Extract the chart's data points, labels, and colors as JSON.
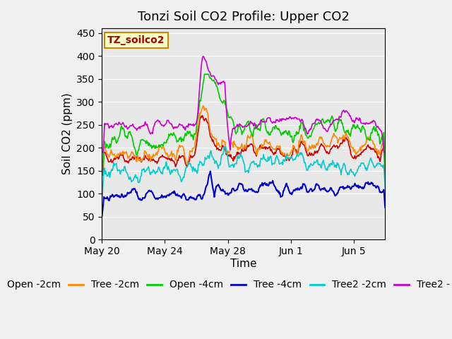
{
  "title": "Tonzi Soil CO2 Profile: Upper CO2",
  "ylabel": "Soil CO2 (ppm)",
  "xlabel": "Time",
  "watermark_text": "TZ_soilco2",
  "ylim": [
    0,
    460
  ],
  "yticks": [
    0,
    50,
    100,
    150,
    200,
    250,
    300,
    350,
    400,
    450
  ],
  "xtick_labels": [
    "May 20",
    "May 24",
    "May 28",
    "Jun 1",
    "Jun 5"
  ],
  "series_colors": {
    "Open -2cm": "#cc0000",
    "Tree -2cm": "#ff8800",
    "Open -4cm": "#00cc00",
    "Tree -4cm": "#0000cc",
    "Tree2 -2cm": "#00cccc",
    "Tree2 - 4cm": "#cc00cc"
  },
  "title_fontsize": 13,
  "axis_label_fontsize": 11,
  "tick_fontsize": 10,
  "legend_fontsize": 10
}
